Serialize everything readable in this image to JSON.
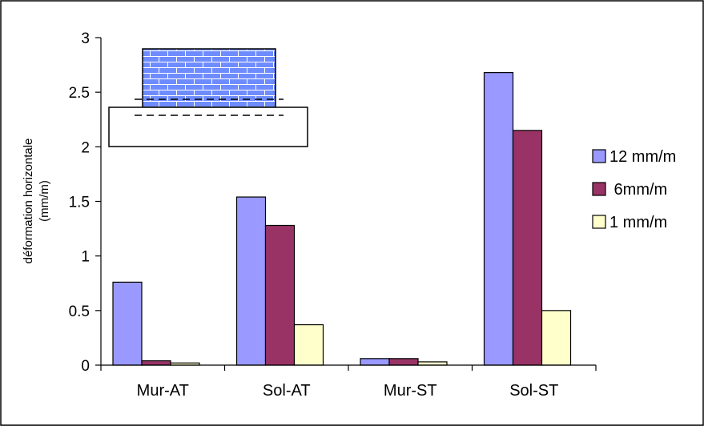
{
  "chart_data": {
    "type": "bar",
    "categories": [
      "Mur-AT",
      "Sol-AT",
      "Mur-ST",
      "Sol-ST"
    ],
    "series": [
      {
        "name": "12 mm/m",
        "values": [
          0.76,
          1.54,
          0.06,
          2.68
        ],
        "color": "#9999FF"
      },
      {
        "name": " 6mm/m",
        "values": [
          0.04,
          1.28,
          0.06,
          2.15
        ],
        "color": "#993366"
      },
      {
        "name": "1 mm/m",
        "values": [
          0.02,
          0.37,
          0.03,
          0.5
        ],
        "color": "#FFFFCC"
      }
    ],
    "ylabel_lines": [
      "déformation horizontale",
      "(mm/m)"
    ],
    "ylim": [
      0,
      3
    ],
    "yticks": [
      0,
      0.5,
      1,
      1.5,
      2,
      2.5,
      3
    ],
    "ytick_labels": [
      "0",
      "0.5",
      "1",
      "1.5",
      "2",
      "2.5",
      "3"
    ],
    "grid": false,
    "legend_position": "right",
    "inset_illustration": "masonry-wall-on-soil"
  }
}
